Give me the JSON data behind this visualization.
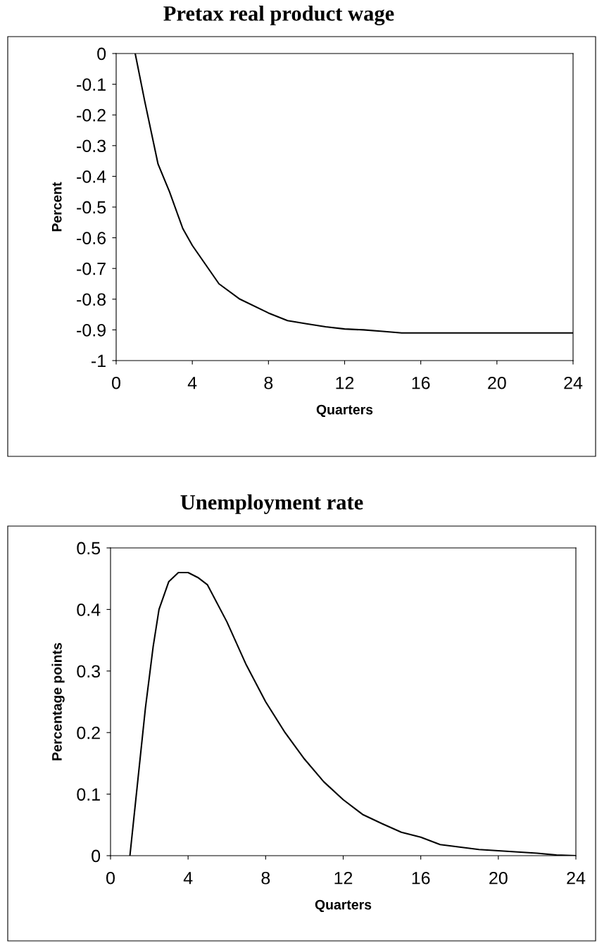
{
  "chart_data": [
    {
      "type": "line",
      "title": "Pretax real product wage",
      "xlabel": "Quarters",
      "ylabel": "Percent",
      "x": [
        1,
        1.5,
        2.2,
        2.8,
        3.5,
        4,
        5.4,
        6.5,
        8,
        9,
        10,
        11,
        12,
        13,
        14,
        15,
        16,
        18,
        20,
        22,
        24
      ],
      "series": [
        {
          "color": "#000000",
          "values": [
            0,
            -0.155,
            -0.36,
            -0.45,
            -0.57,
            -0.625,
            -0.75,
            -0.8,
            -0.845,
            -0.87,
            -0.88,
            -0.89,
            -0.897,
            -0.9,
            -0.905,
            -0.91,
            -0.91,
            -0.91,
            -0.91,
            -0.91,
            -0.91
          ]
        }
      ],
      "xlim": [
        0,
        24
      ],
      "xticks": [
        0,
        4,
        8,
        12,
        16,
        20,
        24
      ],
      "ylim": [
        -1,
        0
      ],
      "yticks": [
        -1,
        -0.9,
        -0.8,
        -0.7,
        -0.6,
        -0.5,
        -0.4,
        -0.3,
        -0.2,
        -0.1,
        0
      ],
      "grid": false,
      "marker": "none",
      "line_style": "solid"
    },
    {
      "type": "line",
      "title": "Unemployment rate",
      "xlabel": "Quarters",
      "ylabel": "Percentage points",
      "x": [
        1,
        1.5,
        1.8,
        2,
        2.2,
        2.5,
        3,
        3.5,
        4,
        4.5,
        5,
        6,
        7,
        8,
        9,
        10,
        11,
        12,
        13,
        14,
        15,
        16,
        17,
        18,
        19,
        20,
        21,
        22,
        23,
        24
      ],
      "series": [
        {
          "color": "#000000",
          "values": [
            0,
            0.15,
            0.24,
            0.29,
            0.34,
            0.4,
            0.445,
            0.46,
            0.46,
            0.452,
            0.44,
            0.38,
            0.31,
            0.25,
            0.2,
            0.157,
            0.12,
            0.091,
            0.067,
            0.052,
            0.038,
            0.03,
            0.018,
            0.014,
            0.01,
            0.008,
            0.006,
            0.004,
            0.001,
            0
          ]
        }
      ],
      "xlim": [
        0,
        24
      ],
      "xticks": [
        0,
        4,
        8,
        12,
        16,
        20,
        24
      ],
      "ylim": [
        0,
        0.5
      ],
      "yticks": [
        0,
        0.1,
        0.2,
        0.3,
        0.4,
        0.5
      ],
      "grid": false,
      "marker": "none",
      "line_style": "solid"
    }
  ]
}
